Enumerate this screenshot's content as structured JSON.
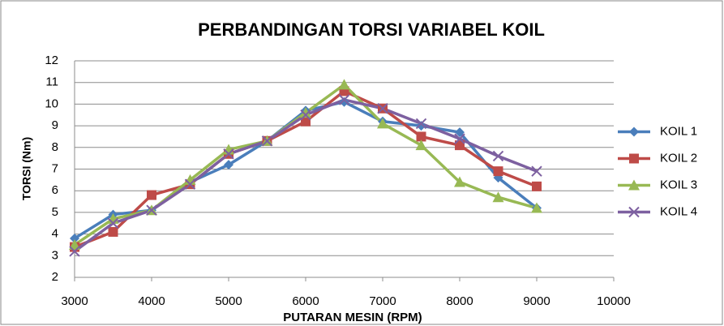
{
  "chart_data": {
    "type": "line",
    "title": "PERBANDINGAN TORSI VARIABEL KOIL",
    "x_label": "PUTARAN MESIN (RPM)",
    "y_label": "TORSI (Nm)",
    "x": [
      3000,
      3500,
      4000,
      4500,
      5000,
      5500,
      6000,
      6500,
      7000,
      7500,
      8000,
      8500,
      9000
    ],
    "series": [
      {
        "name": "KOIL 1",
        "color": "#4a7ebb",
        "marker": "diamond",
        "values": [
          3.8,
          4.9,
          5.1,
          6.4,
          7.2,
          8.3,
          9.7,
          10.1,
          9.2,
          9.0,
          8.7,
          6.6,
          5.2
        ]
      },
      {
        "name": "KOIL 2",
        "color": "#be4b48",
        "marker": "square",
        "values": [
          3.4,
          4.1,
          5.8,
          6.3,
          7.7,
          8.3,
          9.2,
          10.6,
          9.8,
          8.5,
          8.1,
          6.9,
          6.2
        ]
      },
      {
        "name": "KOIL 3",
        "color": "#98b954",
        "marker": "triangle",
        "values": [
          3.5,
          4.7,
          5.1,
          6.5,
          7.9,
          8.3,
          9.6,
          10.9,
          9.1,
          8.1,
          6.4,
          5.7,
          5.2
        ]
      },
      {
        "name": "KOIL 4",
        "color": "#7d60a0",
        "marker": "x",
        "values": [
          3.2,
          4.5,
          5.1,
          6.3,
          7.7,
          8.3,
          9.5,
          10.2,
          9.8,
          9.1,
          8.4,
          7.6,
          6.9
        ]
      }
    ],
    "xlim": [
      3000,
      10000
    ],
    "xticks": [
      3000,
      4000,
      5000,
      6000,
      7000,
      8000,
      9000,
      10000
    ],
    "ylim": [
      2,
      12
    ],
    "yticks": [
      2,
      3,
      4,
      5,
      6,
      7,
      8,
      9,
      10,
      11,
      12
    ],
    "grid": true,
    "legend": "right"
  }
}
